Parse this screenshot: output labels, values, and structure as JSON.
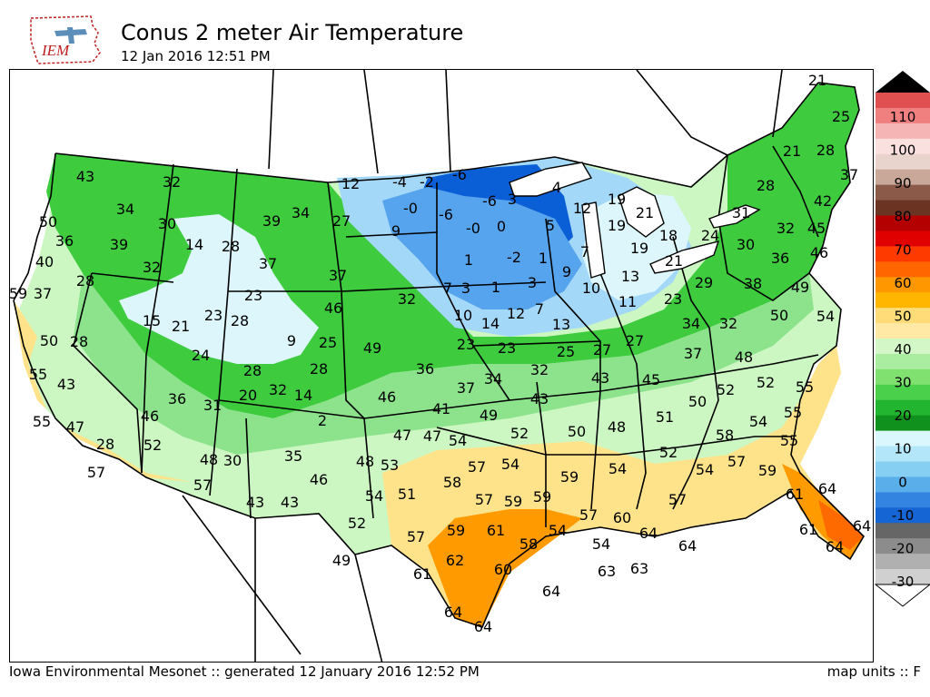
{
  "header": {
    "logo_text": "IEM",
    "title": "Conus 2 meter Air Temperature",
    "subtitle": "12 Jan 2016 12:51 PM"
  },
  "footer": {
    "left": "Iowa Environmental Mesonet :: generated 12 January 2016 12:52 PM",
    "right": "map units :: F"
  },
  "colors": {
    "very_cold": "#0b5fd6",
    "cold": "#57a4ee",
    "cool": "#a4d8f8",
    "chilly": "#dcf6fb",
    "green_dark": "#1aa531",
    "green": "#3ecb3e",
    "green_light": "#8ce38c",
    "pale_green": "#ccf7c2",
    "yellow": "#ffe38a",
    "light_orange": "#ffc15a",
    "orange": "#ff9a00",
    "dark_orange": "#ff6a00"
  },
  "colorbar": {
    "labels": [
      "110",
      "100",
      "90",
      "80",
      "70",
      "60",
      "50",
      "40",
      "30",
      "20",
      "10",
      "0",
      "-10",
      "-20",
      "-30"
    ],
    "colors": [
      "#000000",
      "#e05050",
      "#f08080",
      "#f5b5b5",
      "#fbe0e0",
      "#e8d4cc",
      "#c9a89a",
      "#8b5a48",
      "#6b3322",
      "#b40000",
      "#e00000",
      "#ff3a00",
      "#ff6600",
      "#ff9800",
      "#ffb600",
      "#ffdc78",
      "#ffe9a5",
      "#d4f7c8",
      "#aaeda0",
      "#80e070",
      "#4bd04b",
      "#22b530",
      "#10901c",
      "#d9f7fc",
      "#b2e6f8",
      "#86cff3",
      "#5aaeea",
      "#3284e0",
      "#1665d5",
      "#666666",
      "#8c8c8c",
      "#b0b0b0",
      "#d0d0d0",
      "#ffffff"
    ]
  },
  "map": {
    "unit": "F",
    "labels": [
      {
        "text": "43"
      },
      {
        "text": "32"
      },
      {
        "text": "34"
      },
      {
        "text": "50"
      },
      {
        "text": "30"
      },
      {
        "text": "39"
      },
      {
        "text": "34"
      },
      {
        "text": "27"
      },
      {
        "text": "12"
      },
      {
        "text": "-4"
      },
      {
        "text": "-2"
      },
      {
        "text": "-6"
      },
      {
        "text": "36"
      },
      {
        "text": "39"
      },
      {
        "text": "14"
      },
      {
        "text": "28"
      },
      {
        "text": "-0"
      },
      {
        "text": "-6"
      },
      {
        "text": "-6"
      },
      {
        "text": "3"
      },
      {
        "text": "4"
      },
      {
        "text": "12"
      },
      {
        "text": "19"
      },
      {
        "text": "21"
      },
      {
        "text": "40"
      },
      {
        "text": "32"
      },
      {
        "text": "37"
      },
      {
        "text": "9"
      },
      {
        "text": "-0"
      },
      {
        "text": "0"
      },
      {
        "text": "5"
      },
      {
        "text": "19"
      },
      {
        "text": "18"
      },
      {
        "text": "24"
      },
      {
        "text": "30"
      },
      {
        "text": "59"
      },
      {
        "text": "37"
      },
      {
        "text": "28"
      },
      {
        "text": "23"
      },
      {
        "text": "37"
      },
      {
        "text": "1"
      },
      {
        "text": "-2"
      },
      {
        "text": "1"
      },
      {
        "text": "7"
      },
      {
        "text": "19"
      },
      {
        "text": "21"
      },
      {
        "text": "15"
      },
      {
        "text": "21"
      },
      {
        "text": "23"
      },
      {
        "text": "28"
      },
      {
        "text": "46"
      },
      {
        "text": "32"
      },
      {
        "text": "7"
      },
      {
        "text": "3"
      },
      {
        "text": "1"
      },
      {
        "text": "3"
      },
      {
        "text": "9"
      },
      {
        "text": "13"
      },
      {
        "text": "29"
      },
      {
        "text": "38"
      },
      {
        "text": "50"
      },
      {
        "text": "28"
      },
      {
        "text": "9"
      },
      {
        "text": "25"
      },
      {
        "text": "28"
      },
      {
        "text": "10"
      },
      {
        "text": "14"
      },
      {
        "text": "12"
      },
      {
        "text": "7"
      },
      {
        "text": "10"
      },
      {
        "text": "11"
      },
      {
        "text": "23"
      },
      {
        "text": "34"
      },
      {
        "text": "32"
      },
      {
        "text": "55"
      },
      {
        "text": "24"
      },
      {
        "text": "49"
      },
      {
        "text": "23"
      },
      {
        "text": "23"
      },
      {
        "text": "13"
      },
      {
        "text": "25"
      },
      {
        "text": "27"
      },
      {
        "text": "27"
      },
      {
        "text": "37"
      },
      {
        "text": "48"
      },
      {
        "text": "50"
      },
      {
        "text": "43"
      },
      {
        "text": "28"
      },
      {
        "text": "36"
      },
      {
        "text": "32"
      },
      {
        "text": "43"
      },
      {
        "text": "45"
      },
      {
        "text": "52"
      },
      {
        "text": "52"
      },
      {
        "text": "55"
      },
      {
        "text": "36"
      },
      {
        "text": "31"
      },
      {
        "text": "20"
      },
      {
        "text": "32"
      },
      {
        "text": "14"
      },
      {
        "text": "46"
      },
      {
        "text": "37"
      },
      {
        "text": "34"
      },
      {
        "text": "43"
      },
      {
        "text": "50"
      },
      {
        "text": "54"
      },
      {
        "text": "55"
      },
      {
        "text": "55"
      },
      {
        "text": "47"
      },
      {
        "text": "46"
      },
      {
        "text": "2"
      },
      {
        "text": "41"
      },
      {
        "text": "49"
      },
      {
        "text": "48"
      },
      {
        "text": "51"
      },
      {
        "text": "58"
      },
      {
        "text": "55"
      },
      {
        "text": "28"
      },
      {
        "text": "52"
      },
      {
        "text": "48"
      },
      {
        "text": "30"
      },
      {
        "text": "35"
      },
      {
        "text": "47"
      },
      {
        "text": "47"
      },
      {
        "text": "54"
      },
      {
        "text": "52"
      },
      {
        "text": "50"
      },
      {
        "text": "52"
      },
      {
        "text": "57"
      },
      {
        "text": "59"
      },
      {
        "text": "57"
      },
      {
        "text": "57"
      },
      {
        "text": "46"
      },
      {
        "text": "48"
      },
      {
        "text": "53"
      },
      {
        "text": "58"
      },
      {
        "text": "57"
      },
      {
        "text": "54"
      },
      {
        "text": "59"
      },
      {
        "text": "54"
      },
      {
        "text": "54"
      },
      {
        "text": "61"
      },
      {
        "text": "64"
      },
      {
        "text": "43"
      },
      {
        "text": "43"
      },
      {
        "text": "54"
      },
      {
        "text": "51"
      },
      {
        "text": "57"
      },
      {
        "text": "59"
      },
      {
        "text": "59"
      },
      {
        "text": "57"
      },
      {
        "text": "60"
      },
      {
        "text": "57"
      },
      {
        "text": "52"
      },
      {
        "text": "57"
      },
      {
        "text": "59"
      },
      {
        "text": "61"
      },
      {
        "text": "58"
      },
      {
        "text": "54"
      },
      {
        "text": "54"
      },
      {
        "text": "64"
      },
      {
        "text": "64"
      },
      {
        "text": "64"
      },
      {
        "text": "49"
      },
      {
        "text": "62"
      },
      {
        "text": "61"
      },
      {
        "text": "60"
      },
      {
        "text": "63"
      },
      {
        "text": "63"
      },
      {
        "text": "64"
      },
      {
        "text": "61"
      },
      {
        "text": "64"
      },
      {
        "text": "64"
      },
      {
        "text": "64"
      },
      {
        "text": "21"
      },
      {
        "text": "25"
      },
      {
        "text": "21"
      },
      {
        "text": "28"
      },
      {
        "text": "37"
      },
      {
        "text": "28"
      },
      {
        "text": "42"
      },
      {
        "text": "31"
      },
      {
        "text": "32"
      },
      {
        "text": "45"
      },
      {
        "text": "46"
      },
      {
        "text": "36"
      },
      {
        "text": "49"
      },
      {
        "text": "54"
      }
    ]
  }
}
